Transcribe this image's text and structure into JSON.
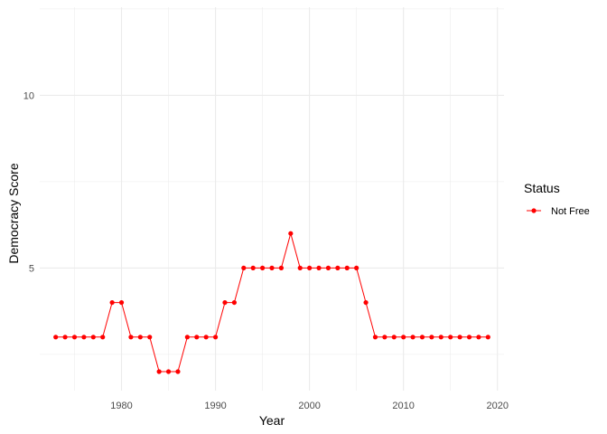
{
  "chart_data": {
    "type": "line",
    "xlabel": "Year",
    "ylabel": "Democracy Score",
    "xlim": [
      1971.3,
      2020.7
    ],
    "ylim": [
      1.45,
      12.55
    ],
    "x_ticks": [
      1980,
      1990,
      2000,
      2010,
      2020
    ],
    "x_tick_labels": [
      "1980",
      "1990",
      "2000",
      "2010",
      "2020"
    ],
    "x_minor_ticks": [
      1975,
      1985,
      1995,
      2005,
      2015
    ],
    "y_ticks": [
      5,
      10
    ],
    "y_tick_labels": [
      "5",
      "10"
    ],
    "y_minor_ticks": [
      2.5,
      7.5,
      12.5
    ],
    "grid": true,
    "legend": {
      "title": "Status",
      "placement": "right",
      "entries": [
        "Not Free"
      ]
    },
    "series": [
      {
        "name": "Not Free",
        "color": "#ff0000",
        "x": [
          1973,
          1974,
          1975,
          1976,
          1977,
          1978,
          1979,
          1980,
          1981,
          1982,
          1983,
          1984,
          1985,
          1986,
          1987,
          1988,
          1989,
          1990,
          1991,
          1992,
          1993,
          1994,
          1995,
          1996,
          1997,
          1998,
          1999,
          2000,
          2001,
          2002,
          2003,
          2004,
          2005,
          2006,
          2007,
          2008,
          2009,
          2010,
          2011,
          2012,
          2013,
          2014,
          2015,
          2016,
          2017,
          2018,
          2019
        ],
        "values": [
          3,
          3,
          3,
          3,
          3,
          3,
          4,
          4,
          3,
          3,
          3,
          2,
          2,
          2,
          3,
          3,
          3,
          3,
          4,
          4,
          5,
          5,
          5,
          5,
          5,
          6,
          5,
          5,
          5,
          5,
          5,
          5,
          5,
          4,
          3,
          3,
          3,
          3,
          3,
          3,
          3,
          3,
          3,
          3,
          3,
          3,
          3
        ]
      }
    ]
  }
}
